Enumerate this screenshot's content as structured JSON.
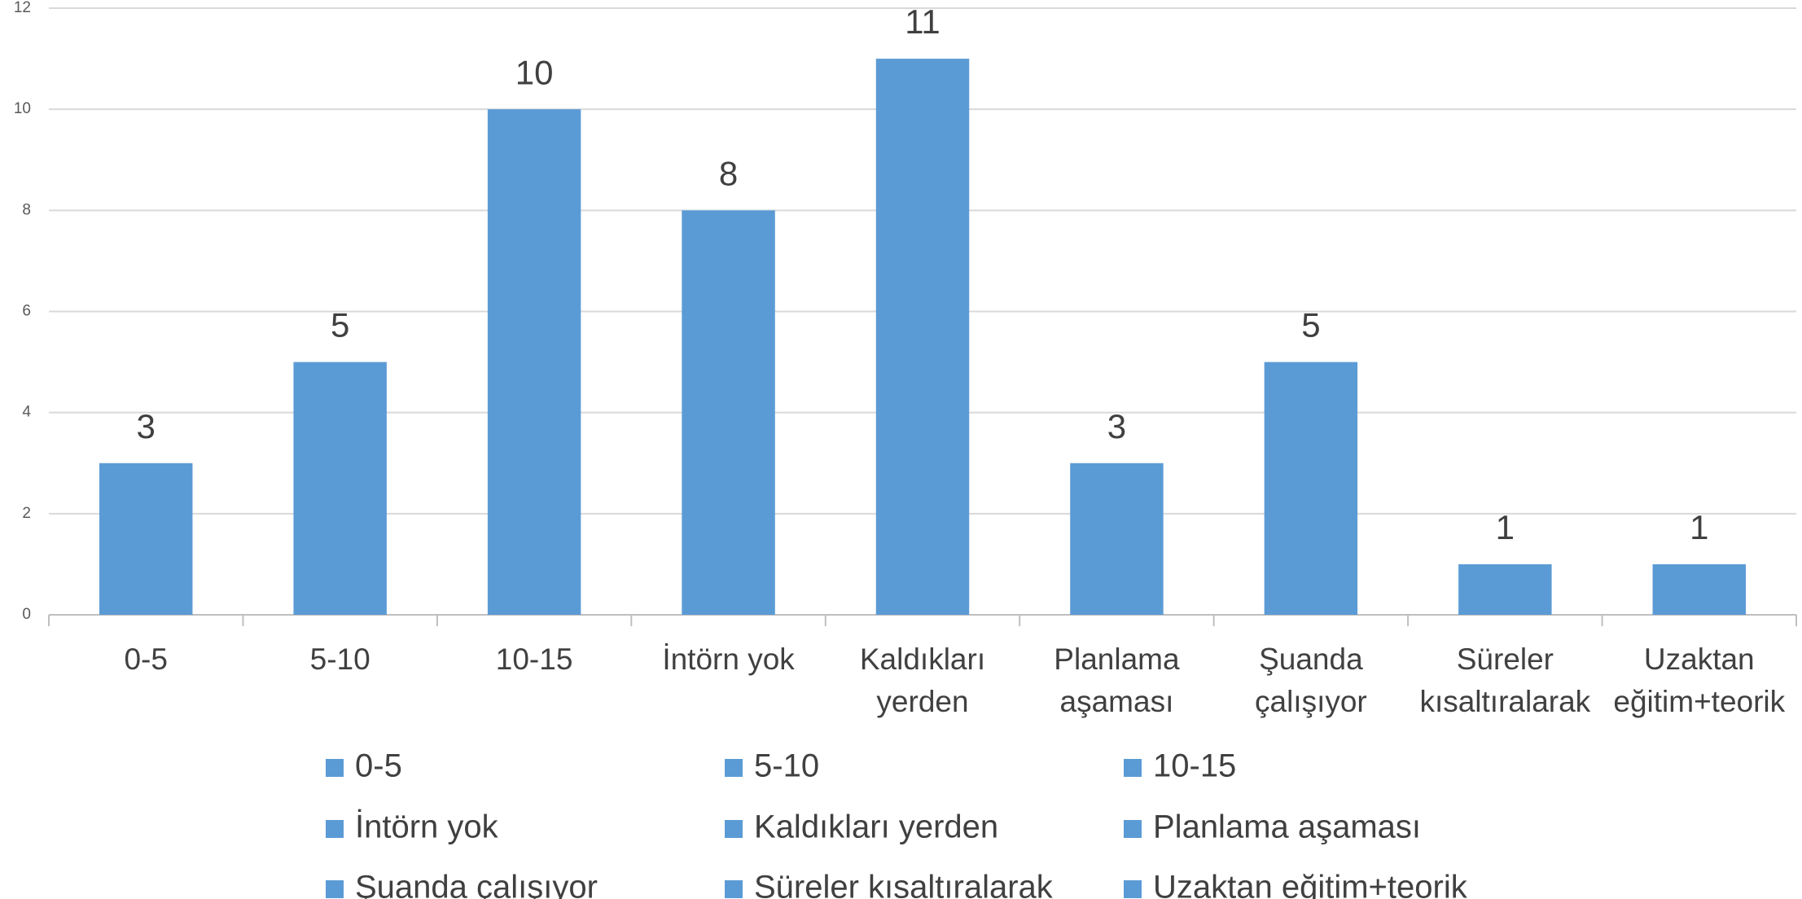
{
  "chart_data": {
    "type": "bar",
    "categories": [
      "0-5",
      "5-10",
      "10-15",
      "İntörn yok",
      "Kaldıkları yerden",
      "Planlama aşaması",
      "Şuanda çalışıyor",
      "Süreler kısaltıralarak",
      "Uzaktan eğitim+teorik"
    ],
    "values": [
      3,
      5,
      10,
      8,
      11,
      3,
      5,
      1,
      1
    ],
    "color": "#5b9bd5",
    "ylim": [
      0,
      12
    ],
    "yticks": [
      0,
      2,
      4,
      6,
      8,
      10,
      12
    ],
    "grid": true,
    "legend": "bottom"
  }
}
